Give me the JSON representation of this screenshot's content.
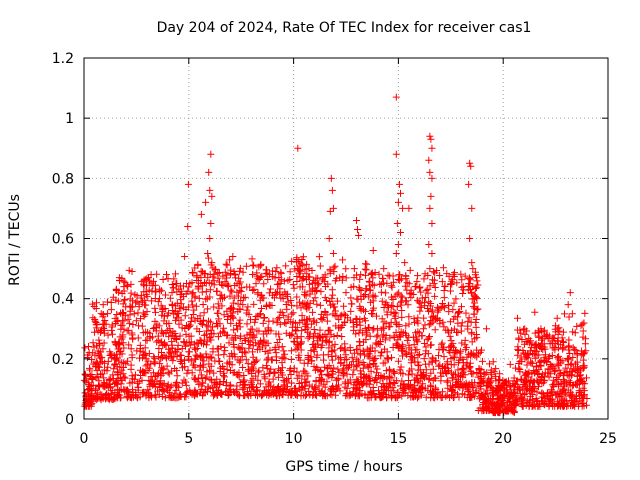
{
  "chart_data": {
    "type": "scatter",
    "title": "Day 204 of 2024, Rate Of TEC Index for receiver cas1",
    "xlabel": "GPS time / hours",
    "ylabel": "ROTI / TECUs",
    "xlim": [
      0,
      25
    ],
    "ylim": [
      0,
      1.2
    ],
    "x_ticks": [
      "0",
      "5",
      "10",
      "15",
      "20",
      "25"
    ],
    "y_ticks": [
      "0",
      "0.2",
      "0.4",
      "0.6",
      "0.8",
      "1",
      "1.2"
    ],
    "x_tick_values": [
      0,
      5,
      10,
      15,
      20,
      25
    ],
    "y_tick_values": [
      0,
      0.2,
      0.4,
      0.6,
      0.8,
      1.0,
      1.2
    ],
    "grid": true,
    "marker": "+",
    "color": "#ff0000",
    "series": [
      {
        "points": [
          [
            4.8,
            0.54
          ],
          [
            4.95,
            0.64
          ],
          [
            4.98,
            0.78
          ],
          [
            5.05,
            0.45
          ],
          [
            5.2,
            0.42
          ],
          [
            5.6,
            0.68
          ],
          [
            5.8,
            0.72
          ],
          [
            5.95,
            0.82
          ],
          [
            6.05,
            0.88
          ],
          [
            6.0,
            0.76
          ],
          [
            6.1,
            0.74
          ],
          [
            6.05,
            0.65
          ],
          [
            6.0,
            0.6
          ],
          [
            5.9,
            0.55
          ],
          [
            6.1,
            0.52
          ],
          [
            6.2,
            0.48
          ],
          [
            7.1,
            0.54
          ],
          [
            7.2,
            0.48
          ],
          [
            7.3,
            0.45
          ],
          [
            10.2,
            0.9
          ],
          [
            10.15,
            0.53
          ],
          [
            10.4,
            0.53
          ],
          [
            11.8,
            0.8
          ],
          [
            11.85,
            0.76
          ],
          [
            11.9,
            0.7
          ],
          [
            11.75,
            0.69
          ],
          [
            11.7,
            0.6
          ],
          [
            11.9,
            0.55
          ],
          [
            13.0,
            0.66
          ],
          [
            13.05,
            0.63
          ],
          [
            13.1,
            0.61
          ],
          [
            12.9,
            0.5
          ],
          [
            13.2,
            0.48
          ],
          [
            14.9,
            1.07
          ],
          [
            14.9,
            0.88
          ],
          [
            15.05,
            0.78
          ],
          [
            15.1,
            0.75
          ],
          [
            15.0,
            0.72
          ],
          [
            15.2,
            0.7
          ],
          [
            14.95,
            0.65
          ],
          [
            15.1,
            0.62
          ],
          [
            15.0,
            0.58
          ],
          [
            14.9,
            0.55
          ],
          [
            15.3,
            0.52
          ],
          [
            15.5,
            0.7
          ],
          [
            16.5,
            0.94
          ],
          [
            16.55,
            0.93
          ],
          [
            16.6,
            0.9
          ],
          [
            16.45,
            0.86
          ],
          [
            16.5,
            0.82
          ],
          [
            16.6,
            0.8
          ],
          [
            16.55,
            0.74
          ],
          [
            16.5,
            0.7
          ],
          [
            16.6,
            0.65
          ],
          [
            16.45,
            0.58
          ],
          [
            16.6,
            0.55
          ],
          [
            16.5,
            0.5
          ],
          [
            16.7,
            0.45
          ],
          [
            18.4,
            0.85
          ],
          [
            18.45,
            0.84
          ],
          [
            18.35,
            0.78
          ],
          [
            18.5,
            0.7
          ],
          [
            18.4,
            0.6
          ],
          [
            18.5,
            0.52
          ],
          [
            18.55,
            0.5
          ],
          [
            18.4,
            0.45
          ],
          [
            18.5,
            0.42
          ],
          [
            18.6,
            0.4
          ],
          [
            23.2,
            0.42
          ],
          [
            23.1,
            0.38
          ],
          [
            23.3,
            0.35
          ],
          [
            22.5,
            0.31
          ],
          [
            21.8,
            0.3
          ],
          [
            1.7,
            0.46
          ],
          [
            1.9,
            0.44
          ],
          [
            3.2,
            0.48
          ],
          [
            3.6,
            0.4
          ],
          [
            4.2,
            0.42
          ],
          [
            8.3,
            0.42
          ],
          [
            9.5,
            0.4
          ],
          [
            11.2,
            0.45
          ],
          [
            12.5,
            0.42
          ],
          [
            13.8,
            0.56
          ],
          [
            14.3,
            0.5
          ],
          [
            15.8,
            0.44
          ],
          [
            17.5,
            0.45
          ],
          [
            0.9,
            0.34
          ],
          [
            2.4,
            0.35
          ],
          [
            19.2,
            0.3
          ],
          [
            20.7,
            0.24
          ],
          [
            21.3,
            0.26
          ],
          [
            22.1,
            0.28
          ]
        ]
      }
    ],
    "activity_segments": [
      {
        "from": 0.0,
        "to": 0.4,
        "level": 0.12,
        "spread": 0.08
      },
      {
        "from": 0.4,
        "to": 1.5,
        "level": 0.18,
        "spread": 0.15
      },
      {
        "from": 1.5,
        "to": 5.0,
        "level": 0.2,
        "spread": 0.2
      },
      {
        "from": 5.0,
        "to": 9.0,
        "level": 0.22,
        "spread": 0.22
      },
      {
        "from": 9.0,
        "to": 13.5,
        "level": 0.22,
        "spread": 0.22
      },
      {
        "from": 13.5,
        "to": 18.8,
        "level": 0.2,
        "spread": 0.22
      },
      {
        "from": 18.8,
        "to": 19.5,
        "level": 0.08,
        "spread": 0.06
      },
      {
        "from": 19.5,
        "to": 20.6,
        "level": 0.06,
        "spread": 0.05
      },
      {
        "from": 20.6,
        "to": 24.0,
        "level": 0.12,
        "spread": 0.14
      }
    ]
  }
}
